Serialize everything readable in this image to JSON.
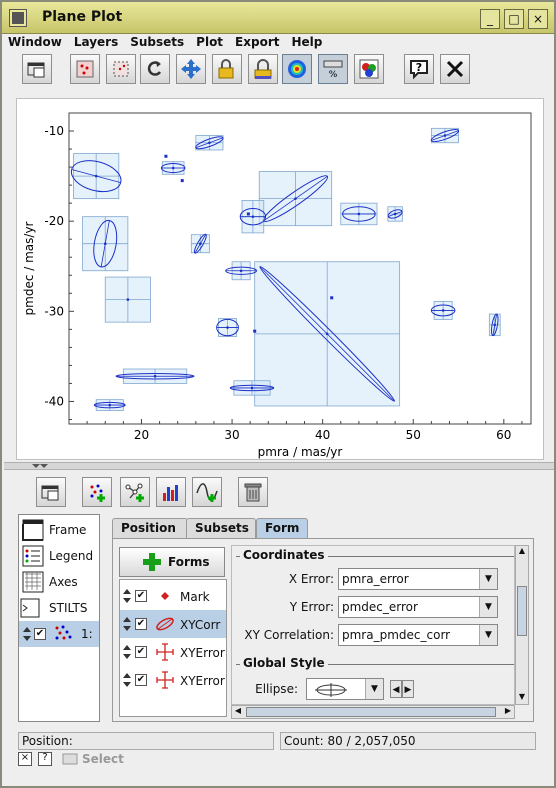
{
  "window": {
    "title": "Plane Plot"
  },
  "menu": [
    "Window",
    "Layers",
    "Subsets",
    "Plot",
    "Export",
    "Help"
  ],
  "toolbar": {
    "icons": [
      "window-icon",
      "scatter-icon",
      "zoom-box-icon",
      "redo-icon",
      "move-icon",
      "lock-icon",
      "gray-lock-icon",
      "density-icon",
      "bar-percent-icon",
      "color-icon",
      "help-icon",
      "close-icon"
    ]
  },
  "plot": {
    "xlabel": "pmra / mas/yr",
    "ylabel": "pmdec / mas/yr",
    "xlim": [
      12,
      63
    ],
    "ylim": [
      -42.5,
      -8
    ],
    "xticks": [
      "20",
      "30",
      "40",
      "50",
      "60"
    ],
    "yticks": [
      "-10",
      "-20",
      "-30",
      "-40"
    ]
  },
  "chart_data": {
    "type": "scatter",
    "xlabel": "pmra / mas/yr",
    "ylabel": "pmdec / mas/yr",
    "xlim": [
      12,
      63
    ],
    "ylim": [
      -42.5,
      -8
    ],
    "points": [
      {
        "x": 40.5,
        "y": -32.5,
        "ex": 8,
        "ey": 8,
        "a": 10.5,
        "b": 0.5,
        "ang": 45
      },
      {
        "x": 18.5,
        "y": -28.7,
        "ex": 2.5,
        "ey": 2.5
      },
      {
        "x": 37,
        "y": -17.5,
        "ex": 4,
        "ey": 3,
        "a": 4.3,
        "b": 0.7,
        "ang": -35
      },
      {
        "x": 32.3,
        "y": -19.5,
        "ex": 1.2,
        "ey": 1.8,
        "a": 1.4,
        "b": 0.9,
        "ang": 0
      },
      {
        "x": 21.5,
        "y": -37.2,
        "ex": 3.5,
        "ey": 0.8,
        "a": 4.3,
        "b": 0.3,
        "ang": 0
      },
      {
        "x": 26.5,
        "y": -22.5,
        "ex": 1,
        "ey": 1,
        "a": 1.2,
        "b": 0.3,
        "ang": -60
      },
      {
        "x": 29.5,
        "y": -31.8,
        "ex": 1,
        "ey": 1,
        "a": 1.2,
        "b": 0.9,
        "ang": 0
      },
      {
        "x": 16,
        "y": -22.5,
        "ex": 2.5,
        "ey": 3,
        "a": 2.6,
        "b": 1.2,
        "ang": -80
      },
      {
        "x": 44,
        "y": -19.2,
        "ex": 2,
        "ey": 1.2,
        "a": 1.8,
        "b": 0.8,
        "ang": 0
      },
      {
        "x": 53.3,
        "y": -29.9,
        "ex": 1,
        "ey": 1,
        "a": 1.3,
        "b": 0.6,
        "ang": 0
      },
      {
        "x": 48,
        "y": -19.2,
        "ex": 0.8,
        "ey": 0.8,
        "a": 0.8,
        "b": 0.4,
        "ang": -20
      },
      {
        "x": 31,
        "y": -25.5,
        "ex": 1,
        "ey": 1,
        "a": 1.7,
        "b": 0.4,
        "ang": 0
      },
      {
        "x": 32.2,
        "y": -38.5,
        "ex": 2,
        "ey": 0.8,
        "a": 2.4,
        "b": 0.3,
        "ang": 0
      },
      {
        "x": 16.5,
        "y": -40.4,
        "ex": 1.5,
        "ey": 0.6,
        "a": 1.7,
        "b": 0.3,
        "ang": 0
      },
      {
        "x": 59,
        "y": -31.5,
        "ex": 0.6,
        "ey": 1.2,
        "a": 1.2,
        "b": 0.3,
        "ang": -80
      },
      {
        "x": 23.5,
        "y": -14.1,
        "ex": 1.2,
        "ey": 0.7,
        "a": 1.3,
        "b": 0.5,
        "ang": 0
      },
      {
        "x": 27.5,
        "y": -11.3,
        "ex": 1.5,
        "ey": 0.8,
        "a": 1.6,
        "b": 0.4,
        "ang": -20
      },
      {
        "x": 53.5,
        "y": -10.5,
        "ex": 1.5,
        "ey": 0.8,
        "a": 1.6,
        "b": 0.4,
        "ang": -20
      },
      {
        "x": 15,
        "y": -15,
        "ex": 2.5,
        "ey": 2.5,
        "a": 2.8,
        "b": 1.6,
        "ang": 15
      }
    ],
    "markers": [
      {
        "x": 22.7,
        "y": -12.8
      },
      {
        "x": 24.5,
        "y": -15.5
      },
      {
        "x": 31.8,
        "y": -19.2
      },
      {
        "x": 41,
        "y": -28.5
      },
      {
        "x": 32.5,
        "y": -32.2
      }
    ]
  },
  "controls": {
    "icons": [
      "window-icon",
      "add-points-icon",
      "add-pairs-icon",
      "add-histogram-icon",
      "add-function-icon",
      "delete-icon"
    ]
  },
  "layers": [
    {
      "label": "Frame",
      "icon": "frame-icon"
    },
    {
      "label": "Legend",
      "icon": "legend-icon"
    },
    {
      "label": "Axes",
      "icon": "axes-icon"
    },
    {
      "label": "STILTS",
      "icon": "stilts-icon"
    },
    {
      "label": "1:",
      "icon": "scatter-layer-icon"
    }
  ],
  "tabs": [
    "Position",
    "Subsets",
    "Form"
  ],
  "forms": {
    "button": "Forms",
    "items": [
      {
        "label": "Mark"
      },
      {
        "label": "XYCorr"
      },
      {
        "label": "XYError"
      },
      {
        "label": "XYError"
      }
    ]
  },
  "coordinates": {
    "title": "Coordinates",
    "rows": [
      {
        "label": "X Error:",
        "value": "pmra_error"
      },
      {
        "label": "Y Error:",
        "value": "pmdec_error"
      },
      {
        "label": "XY Correlation:",
        "value": "pmra_pmdec_corr"
      }
    ]
  },
  "style": {
    "title": "Global Style",
    "ellipse_label": "Ellipse:"
  },
  "status": {
    "position": "Position:",
    "count": "Count: 80 / 2,057,050"
  },
  "bottom": {
    "select": "Select"
  }
}
